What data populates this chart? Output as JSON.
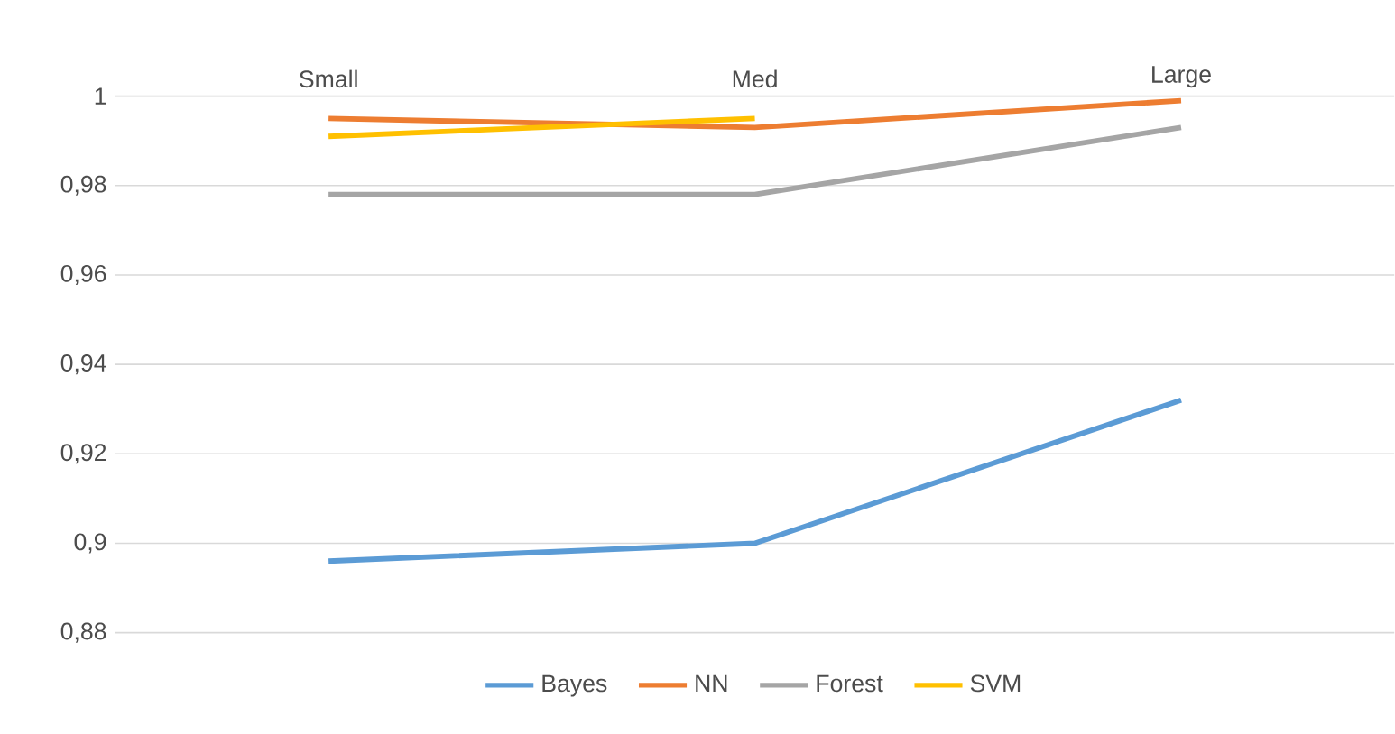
{
  "chart_data": {
    "type": "line",
    "categories": [
      "Small",
      "Med",
      "Large"
    ],
    "series": [
      {
        "name": "Bayes",
        "color": "#5b9bd5",
        "values": [
          0.896,
          0.9,
          0.932
        ]
      },
      {
        "name": "NN",
        "color": "#ed7d31",
        "values": [
          0.995,
          0.993,
          0.999
        ]
      },
      {
        "name": "Forest",
        "color": "#a5a5a5",
        "values": [
          0.978,
          0.978,
          0.993
        ]
      },
      {
        "name": "SVM",
        "color": "#ffc000",
        "values": [
          0.991,
          0.995,
          null
        ]
      }
    ],
    "ylim": [
      0.88,
      1
    ],
    "yticks": [
      {
        "value": 0.88,
        "label": "0,88"
      },
      {
        "value": 0.9,
        "label": "0,9"
      },
      {
        "value": 0.92,
        "label": "0,92"
      },
      {
        "value": 0.94,
        "label": "0,94"
      },
      {
        "value": 0.96,
        "label": "0,96"
      },
      {
        "value": 0.98,
        "label": "0,98"
      },
      {
        "value": 1,
        "label": "1"
      }
    ],
    "grid": "y",
    "legend": "bottom",
    "marker": "none",
    "line_style": "solid"
  }
}
